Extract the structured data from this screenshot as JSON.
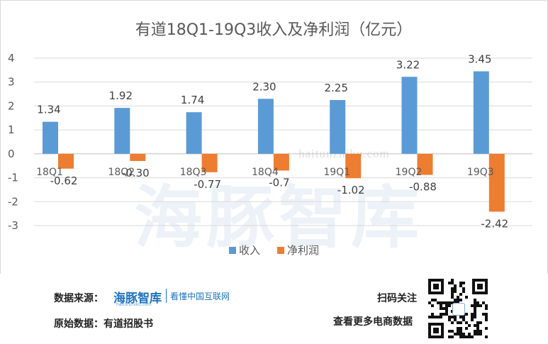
{
  "chart_data": {
    "type": "bar",
    "title": "有道18Q1-19Q3收入及净利润（亿元）",
    "categories": [
      "18Q1",
      "18Q2",
      "18Q3",
      "18Q4",
      "19Q1",
      "19Q2",
      "19Q3"
    ],
    "series": [
      {
        "name": "收入",
        "color": "#5b9bd5",
        "values": [
          1.34,
          1.92,
          1.74,
          2.3,
          2.25,
          3.22,
          3.45
        ],
        "labels": [
          "1.34",
          "1.92",
          "1.74",
          "2.30",
          "2.25",
          "3.22",
          "3.45"
        ]
      },
      {
        "name": "净利润",
        "color": "#ed7d31",
        "values": [
          -0.62,
          -0.3,
          -0.77,
          -0.7,
          -1.02,
          -0.88,
          -2.42
        ],
        "labels": [
          "-0.62",
          "-0.30",
          "-0.77",
          "-0.7",
          "-1.02",
          "-0.88",
          "-2.42"
        ]
      }
    ],
    "yticks": [
      "4",
      "3",
      "2",
      "1",
      "0",
      "-1",
      "-2",
      "-3"
    ],
    "ylim": [
      -3,
      4
    ],
    "grid": true,
    "legend": "bottom-center"
  },
  "watermark": {
    "url": "haitunzhiku.com",
    "brand": "海豚智库"
  },
  "footer": {
    "source_label": "数据来源：",
    "source_logo": "海豚智库",
    "source_logo_url": "haitunzhiku.com",
    "source_slogan": "看懂中国互联网",
    "original_label": "原始数据：有道招股书",
    "scan_label": "扫码关注",
    "more_label": "查看更多电商数据"
  }
}
